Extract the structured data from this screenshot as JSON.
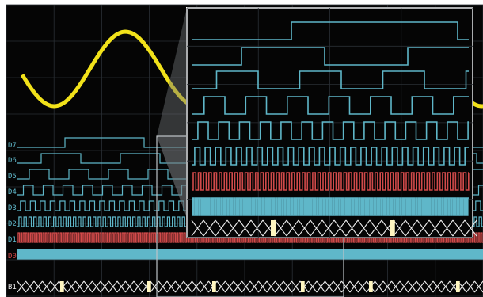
{
  "scope": {
    "colors": {
      "background": "#050505",
      "grid": "#2a2f35",
      "analog": "#f2e21a",
      "digital": "#5fb7c9",
      "highlight": "#d14a4a",
      "bus": "#e9e9e9",
      "zoom_frame": "#ffffff"
    },
    "channel_labels": [
      "D7",
      "D6",
      "D5",
      "D4",
      "D3",
      "D2",
      "D1",
      "D0",
      "B1"
    ]
  }
}
